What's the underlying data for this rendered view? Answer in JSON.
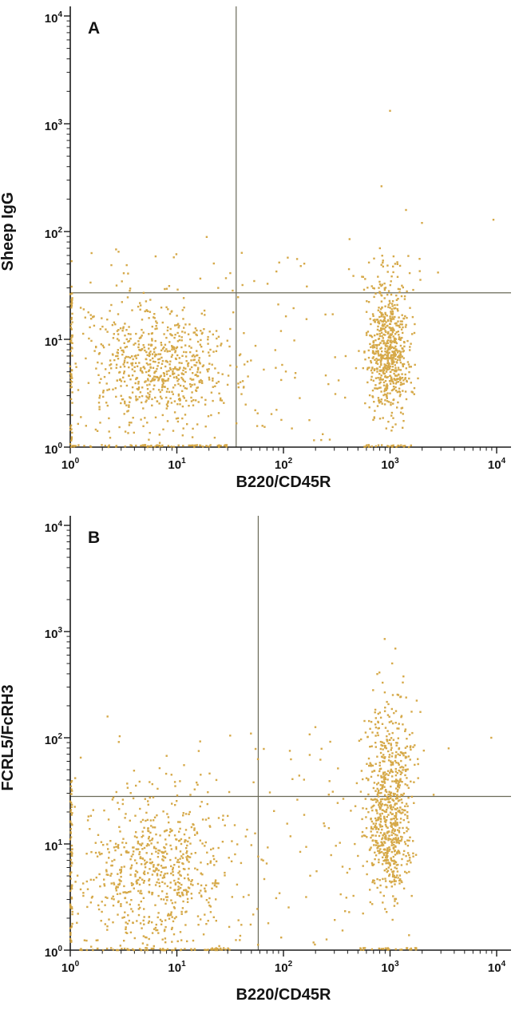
{
  "figure": {
    "background": "#ffffff",
    "point_color": "#d3a23a",
    "axis_color": "#1a1a1a",
    "gate_line_color": "#6a6a58"
  },
  "chart_data": [
    {
      "type": "scatter",
      "panel_label": "A",
      "xlabel": "B220/CD45R",
      "ylabel": "Sheep IgG",
      "x_scale": "log",
      "y_scale": "log",
      "x_range": [
        1,
        10000
      ],
      "y_range": [
        1,
        10000
      ],
      "tick_exponents": [
        0,
        1,
        2,
        3,
        4
      ],
      "grid": false,
      "legend": "none",
      "quadrant_gate": {
        "x": 36,
        "y": 27
      },
      "seed": 20240,
      "clusters": [
        {
          "name": "double-negative",
          "type": "gauss",
          "n": 640,
          "log_x_mean": 0.82,
          "log_y_mean": 0.78,
          "log_x_sd": 0.33,
          "log_y_sd": 0.29
        },
        {
          "name": "b220-positive-column",
          "type": "gauss",
          "n": 600,
          "log_x_mean": 2.98,
          "log_y_mean": 0.86,
          "log_x_sd": 0.1,
          "log_y_sd": 0.27
        },
        {
          "name": "background-scatter",
          "type": "uniform",
          "n": 120,
          "log_x_min": 0,
          "log_x_max": 2.6,
          "log_y_min": 0.05,
          "log_y_max": 1.35
        },
        {
          "name": "above-gate-strays",
          "type": "uniform",
          "n": 40,
          "log_x_min": 0,
          "log_x_max": 3.3,
          "log_y_min": 1.45,
          "log_y_max": 1.85
        },
        {
          "name": "b220-column-upper-tail",
          "type": "gauss",
          "n": 55,
          "log_x_mean": 2.96,
          "log_y_mean": 1.45,
          "log_x_sd": 0.13,
          "log_y_sd": 0.22
        },
        {
          "name": "bottom-axis-pileup-left",
          "type": "uniform",
          "n": 65,
          "log_x_min": 0,
          "log_x_max": 1.5,
          "log_y_min": 0,
          "log_y_max": 0.02
        },
        {
          "name": "bottom-axis-pileup-b220",
          "type": "uniform",
          "n": 25,
          "log_x_min": 2.7,
          "log_x_max": 3.2,
          "log_y_min": 0,
          "log_y_max": 0.02
        },
        {
          "name": "left-axis-pileup",
          "type": "uniform",
          "n": 55,
          "log_x_min": 0,
          "log_x_max": 0.02,
          "log_y_min": 0,
          "log_y_max": 1.5
        }
      ],
      "outliers_log10": [
        [
          3.0,
          3.12
        ],
        [
          2.92,
          2.42
        ],
        [
          3.3,
          2.08
        ],
        [
          3.97,
          2.11
        ],
        [
          2.62,
          1.93
        ],
        [
          1.28,
          1.95
        ],
        [
          0.2,
          1.8
        ],
        [
          3.15,
          2.2
        ],
        [
          2.85,
          1.75
        ],
        [
          3.45,
          1.62
        ]
      ]
    },
    {
      "type": "scatter",
      "panel_label": "B",
      "xlabel": "B220/CD45R",
      "ylabel": "FCRL5/FcRH3",
      "x_scale": "log",
      "y_scale": "log",
      "x_range": [
        1,
        10000
      ],
      "y_range": [
        1,
        10000
      ],
      "tick_exponents": [
        0,
        1,
        2,
        3,
        4
      ],
      "grid": false,
      "legend": "none",
      "quadrant_gate": {
        "x": 58,
        "y": 28
      },
      "seed": 77031,
      "clusters": [
        {
          "name": "double-negative",
          "type": "gauss",
          "n": 620,
          "log_x_mean": 0.8,
          "log_y_mean": 0.72,
          "log_x_sd": 0.34,
          "log_y_sd": 0.36
        },
        {
          "name": "b220-positive-column",
          "type": "gauss",
          "n": 520,
          "log_x_mean": 2.99,
          "log_y_mean": 1.12,
          "log_x_sd": 0.1,
          "log_y_sd": 0.32
        },
        {
          "name": "b220-positive-fcrl5-high",
          "type": "gauss",
          "n": 250,
          "log_x_mean": 3.0,
          "log_y_mean": 1.82,
          "log_x_sd": 0.13,
          "log_y_sd": 0.3
        },
        {
          "name": "background-scatter",
          "type": "uniform",
          "n": 130,
          "log_x_min": 0,
          "log_x_max": 2.7,
          "log_y_min": 0.05,
          "log_y_max": 1.45
        },
        {
          "name": "above-gate-strays",
          "type": "uniform",
          "n": 40,
          "log_x_min": 0,
          "log_x_max": 2.6,
          "log_y_min": 1.45,
          "log_y_max": 2.05
        },
        {
          "name": "bottom-axis-pileup-left",
          "type": "uniform",
          "n": 55,
          "log_x_min": 0,
          "log_x_max": 1.5,
          "log_y_min": 0,
          "log_y_max": 0.02
        },
        {
          "name": "bottom-axis-pileup-b220",
          "type": "uniform",
          "n": 30,
          "log_x_min": 2.7,
          "log_x_max": 3.25,
          "log_y_min": 0,
          "log_y_max": 0.02
        },
        {
          "name": "left-axis-pileup",
          "type": "uniform",
          "n": 55,
          "log_x_min": 0,
          "log_x_max": 0.02,
          "log_y_min": 0,
          "log_y_max": 1.6
        }
      ],
      "outliers_log10": [
        [
          2.95,
          2.93
        ],
        [
          3.05,
          2.84
        ],
        [
          2.88,
          2.6
        ],
        [
          3.12,
          2.52
        ],
        [
          3.02,
          2.7
        ],
        [
          3.95,
          2.0
        ],
        [
          3.55,
          1.9
        ],
        [
          0.35,
          2.2
        ],
        [
          1.5,
          2.02
        ],
        [
          2.3,
          2.1
        ],
        [
          3.25,
          2.35
        ]
      ]
    }
  ]
}
